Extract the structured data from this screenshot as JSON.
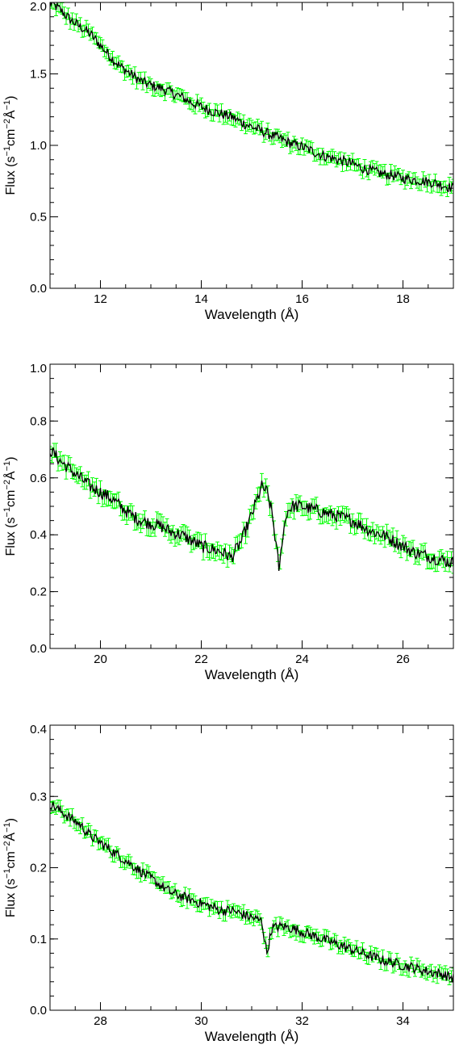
{
  "chart_data": [
    {
      "type": "line",
      "title": "",
      "xlabel": "Wavelength (Å)",
      "ylabel_parts": [
        "Flux (s",
        "−1",
        "cm",
        "−2",
        "Å",
        "−1",
        ")"
      ],
      "xlim": [
        11,
        19
      ],
      "ylim": [
        0,
        2.0
      ],
      "xticks": [
        12,
        14,
        16,
        18
      ],
      "xtick_labels": [
        "12",
        "14",
        "16",
        "18"
      ],
      "yticks": [
        0,
        0.5,
        1.0,
        1.5,
        2.0
      ],
      "ytick_labels": [
        "0.0",
        "0.5",
        "1.0",
        "1.5",
        "2.0"
      ],
      "xminor": 0.5,
      "yminor": 0.1,
      "grid": false,
      "series": [
        {
          "color": "#000000",
          "error_color": "#00ff00",
          "x": [
            11.0,
            11.2,
            11.4,
            11.6,
            11.8,
            12.0,
            12.2,
            12.4,
            12.6,
            12.8,
            13.0,
            13.2,
            13.4,
            13.6,
            13.8,
            14.0,
            14.2,
            14.4,
            14.6,
            14.8,
            15.0,
            15.2,
            15.4,
            15.6,
            15.8,
            16.0,
            16.2,
            16.4,
            16.6,
            16.8,
            17.0,
            17.2,
            17.4,
            17.6,
            17.8,
            18.0,
            18.2,
            18.4,
            18.6,
            18.8,
            19.0
          ],
          "y": [
            2.0,
            1.95,
            1.88,
            1.83,
            1.78,
            1.7,
            1.62,
            1.55,
            1.5,
            1.45,
            1.42,
            1.4,
            1.37,
            1.34,
            1.3,
            1.27,
            1.24,
            1.22,
            1.2,
            1.16,
            1.13,
            1.1,
            1.07,
            1.04,
            1.01,
            0.99,
            0.96,
            0.93,
            0.91,
            0.89,
            0.87,
            0.84,
            0.82,
            0.8,
            0.79,
            0.77,
            0.76,
            0.75,
            0.74,
            0.72,
            0.7
          ],
          "err": 0.04
        }
      ]
    },
    {
      "type": "line",
      "title": "",
      "xlabel": "Wavelength (Å)",
      "ylabel_parts": [
        "Flux (s",
        "−1",
        "cm",
        "−2",
        "Å",
        "−1",
        ")"
      ],
      "xlim": [
        19,
        27
      ],
      "ylim": [
        0,
        1.0
      ],
      "xticks": [
        20,
        22,
        24,
        26
      ],
      "xtick_labels": [
        "20",
        "22",
        "24",
        "26"
      ],
      "yticks": [
        0,
        0.2,
        0.4,
        0.6,
        0.8,
        1.0
      ],
      "ytick_labels": [
        "0.0",
        "0.2",
        "0.4",
        "0.6",
        "0.8",
        "1.0"
      ],
      "xminor": 0.5,
      "yminor": 0.05,
      "grid": false,
      "series": [
        {
          "color": "#000000",
          "error_color": "#00ff00",
          "x": [
            19.0,
            19.2,
            19.4,
            19.6,
            19.8,
            20.0,
            20.2,
            20.4,
            20.6,
            20.8,
            21.0,
            21.2,
            21.4,
            21.6,
            21.8,
            22.0,
            22.2,
            22.4,
            22.6,
            22.8,
            23.0,
            23.1,
            23.2,
            23.3,
            23.4,
            23.5,
            23.55,
            23.6,
            23.7,
            23.8,
            24.0,
            24.2,
            24.4,
            24.6,
            24.8,
            25.0,
            25.2,
            25.4,
            25.6,
            25.8,
            26.0,
            26.2,
            26.4,
            26.6,
            26.8,
            27.0
          ],
          "y": [
            0.7,
            0.66,
            0.63,
            0.6,
            0.57,
            0.55,
            0.53,
            0.5,
            0.47,
            0.45,
            0.44,
            0.43,
            0.41,
            0.4,
            0.38,
            0.36,
            0.35,
            0.34,
            0.32,
            0.38,
            0.47,
            0.52,
            0.57,
            0.55,
            0.48,
            0.34,
            0.27,
            0.38,
            0.48,
            0.5,
            0.5,
            0.49,
            0.48,
            0.47,
            0.46,
            0.45,
            0.43,
            0.41,
            0.4,
            0.38,
            0.36,
            0.34,
            0.33,
            0.32,
            0.31,
            0.3
          ],
          "err": 0.025
        }
      ]
    },
    {
      "type": "line",
      "title": "",
      "xlabel": "Wavelength (Å)",
      "ylabel_parts": [
        "Flux (s",
        "−1",
        "cm",
        "−2",
        "Å",
        "−1",
        ")"
      ],
      "xlim": [
        27,
        35
      ],
      "ylim": [
        0,
        0.4
      ],
      "xticks": [
        28,
        30,
        32,
        34
      ],
      "xtick_labels": [
        "28",
        "30",
        "32",
        "34"
      ],
      "yticks": [
        0,
        0.1,
        0.2,
        0.3,
        0.4
      ],
      "ytick_labels": [
        "0.0",
        "0.1",
        "0.2",
        "0.3",
        "0.4"
      ],
      "xminor": 0.5,
      "yminor": 0.02,
      "grid": false,
      "series": [
        {
          "color": "#000000",
          "error_color": "#00ff00",
          "x": [
            27.0,
            27.2,
            27.4,
            27.6,
            27.8,
            28.0,
            28.2,
            28.4,
            28.6,
            28.8,
            29.0,
            29.2,
            29.4,
            29.6,
            29.8,
            30.0,
            30.2,
            30.4,
            30.6,
            30.8,
            31.0,
            31.2,
            31.3,
            31.4,
            31.6,
            31.8,
            32.0,
            32.2,
            32.4,
            32.6,
            32.8,
            33.0,
            33.2,
            33.4,
            33.6,
            33.8,
            34.0,
            34.2,
            34.4,
            34.6,
            34.8,
            35.0
          ],
          "y": [
            0.29,
            0.28,
            0.27,
            0.26,
            0.245,
            0.235,
            0.225,
            0.215,
            0.205,
            0.195,
            0.185,
            0.175,
            0.165,
            0.16,
            0.155,
            0.15,
            0.145,
            0.14,
            0.14,
            0.135,
            0.13,
            0.125,
            0.08,
            0.115,
            0.118,
            0.115,
            0.11,
            0.105,
            0.1,
            0.095,
            0.09,
            0.085,
            0.08,
            0.075,
            0.07,
            0.067,
            0.063,
            0.06,
            0.056,
            0.053,
            0.05,
            0.045
          ],
          "err": 0.008
        }
      ]
    }
  ]
}
